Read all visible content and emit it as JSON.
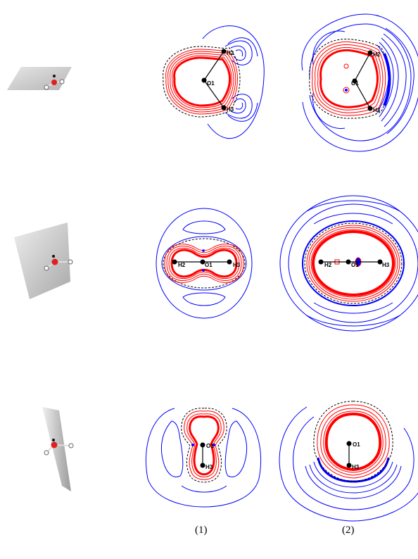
{
  "captions": [
    "(1)",
    "(2)"
  ],
  "rows": [
    {
      "name": "row-1",
      "atoms": [
        "H2",
        "O1",
        "H3"
      ]
    },
    {
      "name": "row-2",
      "atoms": [
        "H2",
        "O1",
        "H3"
      ]
    },
    {
      "name": "row-3",
      "atoms": [
        "O1",
        "H3"
      ]
    }
  ],
  "colors": {
    "negative": "#ff0000",
    "positive": "#0000ff",
    "zero": "#000000",
    "plane": "#c8c8c8"
  }
}
